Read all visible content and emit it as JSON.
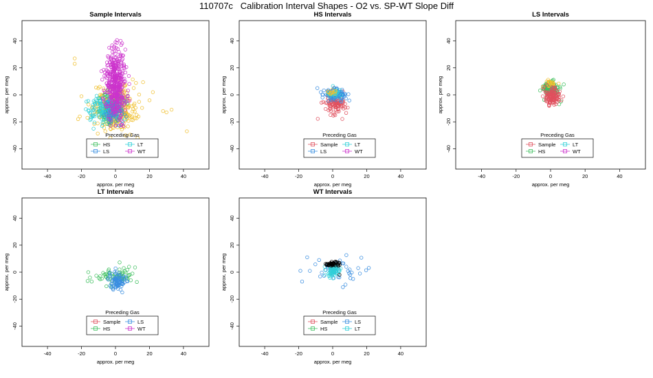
{
  "page": {
    "title": "110707c   Calibration Interval Shapes - O2 vs. SP-WT Slope Diff"
  },
  "colors": {
    "Sample": "#e0505e",
    "HS": "#40c060",
    "LS": "#3a8ee0",
    "LT": "#30d0d8",
    "WT": "#cc33cc",
    "Sample_cloud": "#f0c030",
    "WT_center": "#000000"
  },
  "chart_data": [
    {
      "type": "scatter",
      "title": "Sample Intervals",
      "xlabel": "approx. per meg",
      "ylabel": "approx. per meg",
      "xlim": [
        -55,
        55
      ],
      "ylim": [
        -55,
        55
      ],
      "xticks": [
        -40,
        -20,
        0,
        20,
        40
      ],
      "yticks": [
        -40,
        -20,
        0,
        20,
        40
      ],
      "grid": false,
      "legend": {
        "title": "Preceding Gas",
        "placement": "bottom-center",
        "entries": [
          "HS",
          "LT",
          "LS",
          "WT"
        ],
        "columns": 2
      },
      "series": [
        {
          "name": "Sample",
          "color_key": "Sample_cloud",
          "cx": 0,
          "cy": -10,
          "sx": 6,
          "sy": 8,
          "n": 320,
          "points": [
            [
              -24,
              27
            ],
            [
              -24,
              23
            ],
            [
              42,
              -27
            ],
            [
              28,
              -12
            ],
            [
              33,
              -11
            ],
            [
              30,
              -13
            ],
            [
              -20,
              -1
            ],
            [
              -22,
              -18
            ],
            [
              -12,
              -34
            ],
            [
              -3,
              -32
            ],
            [
              13,
              -32
            ],
            [
              -6,
              -27
            ],
            [
              22,
              2
            ],
            [
              20,
              -4
            ],
            [
              -21,
              -16
            ]
          ]
        },
        {
          "name": "HS",
          "color_key": "HS",
          "cx": -3,
          "cy": -9,
          "sx": 4,
          "sy": 6,
          "n": 120,
          "points": []
        },
        {
          "name": "LT",
          "color_key": "LT",
          "cx": -7,
          "cy": -10,
          "sx": 5,
          "sy": 5,
          "n": 120,
          "points": []
        },
        {
          "name": "LS",
          "color_key": "LS",
          "cx": -1,
          "cy": -12,
          "sx": 3,
          "sy": 5,
          "n": 80,
          "points": []
        },
        {
          "name": "WT",
          "color_key": "WT",
          "cx": 0,
          "cy": 8,
          "sx": 3,
          "sy": 13,
          "n": 420,
          "points": []
        }
      ]
    },
    {
      "type": "scatter",
      "title": "HS Intervals",
      "xlabel": "approx. per meg",
      "ylabel": "approx. per meg",
      "xlim": [
        -55,
        55
      ],
      "ylim": [
        -55,
        55
      ],
      "xticks": [
        -40,
        -20,
        0,
        20,
        40
      ],
      "yticks": [
        -40,
        -20,
        0,
        20,
        40
      ],
      "grid": false,
      "legend": {
        "title": "Preceding Gas",
        "placement": "bottom-center",
        "entries": [
          "Sample",
          "LT",
          "LS",
          "WT"
        ],
        "columns": 2
      },
      "series": [
        {
          "name": "Sample",
          "color_key": "Sample",
          "cx": 1,
          "cy": -7,
          "sx": 3,
          "sy": 4,
          "n": 110,
          "points": []
        },
        {
          "name": "LS",
          "color_key": "LS",
          "cx": 1,
          "cy": 0,
          "sx": 3,
          "sy": 2,
          "n": 110,
          "points": [
            [
              -9,
              5
            ],
            [
              -7,
              2
            ],
            [
              -6,
              -2
            ]
          ]
        },
        {
          "name": "LT",
          "color_key": "LT",
          "cx": 1,
          "cy": 1,
          "sx": 2,
          "sy": 1.5,
          "n": 25,
          "points": []
        },
        {
          "name": "WT",
          "color_key": "Sample_cloud",
          "cx": 0,
          "cy": 2,
          "sx": 2,
          "sy": 1,
          "n": 12,
          "points": []
        }
      ]
    },
    {
      "type": "scatter",
      "title": "LS Intervals",
      "xlabel": "approx. per meg",
      "ylabel": "approx. per meg",
      "xlim": [
        -55,
        55
      ],
      "ylim": [
        -55,
        55
      ],
      "xticks": [
        -40,
        -20,
        0,
        20,
        40
      ],
      "yticks": [
        -40,
        -20,
        0,
        20,
        40
      ],
      "grid": false,
      "legend": {
        "title": "Preceding Gas",
        "placement": "bottom-center",
        "entries": [
          "Sample",
          "LT",
          "HS",
          "WT"
        ],
        "columns": 2
      },
      "series": [
        {
          "name": "HS",
          "color_key": "HS",
          "cx": 0,
          "cy": 5,
          "sx": 2.5,
          "sy": 2.5,
          "n": 110,
          "points": [
            [
              6,
              -5
            ],
            [
              5,
              -7
            ]
          ]
        },
        {
          "name": "WT",
          "color_key": "Sample_cloud",
          "cx": 0,
          "cy": 9,
          "sx": 2,
          "sy": 1.2,
          "n": 20,
          "points": []
        },
        {
          "name": "Sample",
          "color_key": "Sample",
          "cx": 1,
          "cy": -1,
          "sx": 2,
          "sy": 3,
          "n": 120,
          "points": []
        }
      ]
    },
    {
      "type": "scatter",
      "title": "LT Intervals",
      "xlabel": "approx. per meg",
      "ylabel": "approx. per meg",
      "xlim": [
        -55,
        55
      ],
      "ylim": [
        -55,
        55
      ],
      "xticks": [
        -40,
        -20,
        0,
        20,
        40
      ],
      "yticks": [
        -40,
        -20,
        0,
        20,
        40
      ],
      "grid": false,
      "legend": {
        "title": "Preceding Gas",
        "placement": "bottom-center",
        "entries": [
          "Sample",
          "LS",
          "HS",
          "WT"
        ],
        "columns": 2
      },
      "series": [
        {
          "name": "HS",
          "color_key": "HS",
          "cx": 0,
          "cy": -3,
          "sx": 6,
          "sy": 3.5,
          "n": 60,
          "points": [
            [
              -16,
              0
            ],
            [
              -15,
              -4
            ],
            [
              -14,
              -7
            ],
            [
              -9,
              -3
            ],
            [
              8,
              4
            ],
            [
              10,
              -1
            ],
            [
              9,
              -6
            ]
          ]
        },
        {
          "name": "LS",
          "color_key": "LS",
          "cx": 1,
          "cy": -6,
          "sx": 2.5,
          "sy": 3,
          "n": 90,
          "points": [
            [
              4,
              -15
            ],
            [
              3,
              -13
            ]
          ]
        }
      ]
    },
    {
      "type": "scatter",
      "title": "WT Intervals",
      "xlabel": "approx. per meg",
      "ylabel": "approx. per meg",
      "xlim": [
        -55,
        55
      ],
      "ylim": [
        -55,
        55
      ],
      "xticks": [
        -40,
        -20,
        0,
        20,
        40
      ],
      "yticks": [
        -40,
        -20,
        0,
        20,
        40
      ],
      "grid": false,
      "legend": {
        "title": "Preceding Gas",
        "placement": "bottom-center",
        "entries": [
          "Sample",
          "LS",
          "HS",
          "LT"
        ],
        "columns": 2
      },
      "series": [
        {
          "name": "LS",
          "color_key": "LS",
          "cx": 2,
          "cy": 0,
          "sx": 7,
          "sy": 5,
          "n": 40,
          "points": [
            [
              -18,
              -7
            ],
            [
              -19,
              1
            ],
            [
              -15,
              11
            ],
            [
              -8,
              9
            ],
            [
              15,
              3
            ],
            [
              16,
              -1
            ],
            [
              12,
              -5
            ],
            [
              8,
              4
            ]
          ]
        },
        {
          "name": "LT",
          "color_key": "LT",
          "cx": 0,
          "cy": 1,
          "sx": 2,
          "sy": 2.5,
          "n": 60,
          "points": []
        },
        {
          "name": "WT",
          "color_key": "WT_center",
          "cx": 0,
          "cy": 6,
          "sx": 2,
          "sy": 0.8,
          "n": 40,
          "points": [
            [
              4,
              -2
            ]
          ]
        }
      ]
    }
  ]
}
